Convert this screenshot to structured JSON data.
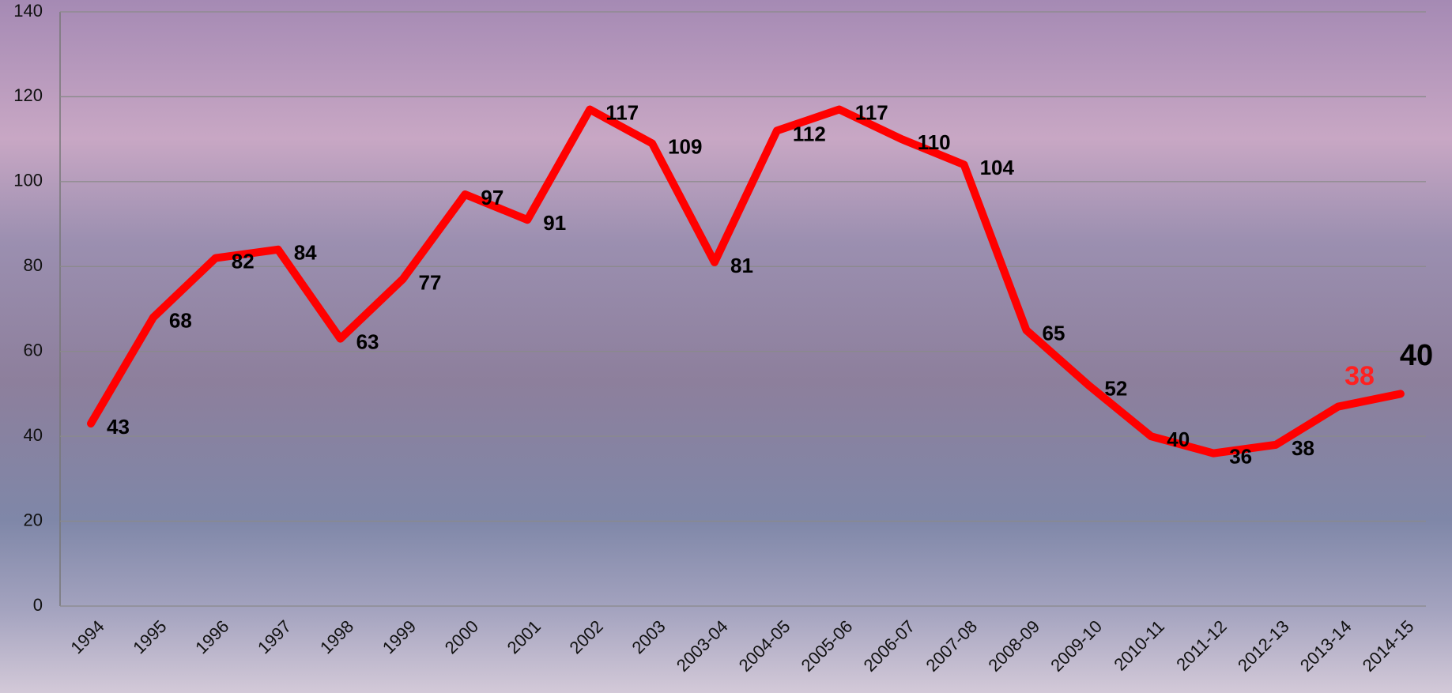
{
  "chart_data": {
    "type": "line",
    "categories": [
      "1994",
      "1995",
      "1996",
      "1997",
      "1998",
      "1999",
      "2000",
      "2001",
      "2002",
      "2003",
      "2003-04",
      "2004-05",
      "2005-06",
      "2006-07",
      "2007-08",
      "2008-09",
      "2009-10",
      "2010-11",
      "2011-12",
      "2012-13",
      "2013-14",
      "2014-15"
    ],
    "series": [
      {
        "color": "#ff0000",
        "values": [
          43,
          68,
          82,
          84,
          63,
          77,
          97,
          91,
          117,
          109,
          81,
          112,
          117,
          110,
          104,
          65,
          52,
          40,
          36,
          38,
          47,
          50
        ]
      }
    ],
    "value_label_count": 20,
    "annotations": [
      {
        "text": "38",
        "color": "#ff2020"
      },
      {
        "text": "40",
        "color": "#000000"
      }
    ],
    "ylim": [
      0,
      140
    ],
    "yticks": [
      0,
      20,
      40,
      60,
      80,
      100,
      120,
      140
    ],
    "grid": true
  }
}
